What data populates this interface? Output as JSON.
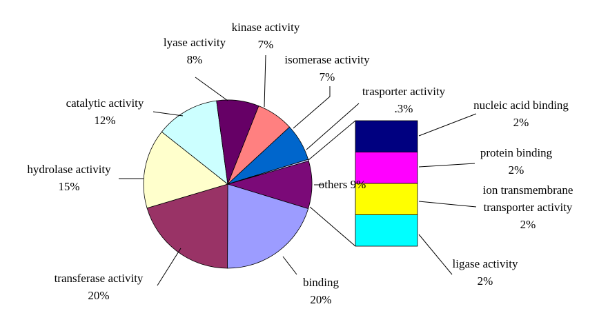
{
  "chart_data": {
    "type": "pie",
    "categories": [
      "others",
      "binding",
      "transferase activity",
      "hydrolase activity",
      "catalytic activity",
      "lyase activity",
      "kinase activity",
      "isomerase activity",
      "trasporter activity"
    ],
    "values": [
      9,
      20,
      20,
      15,
      12,
      8,
      7,
      7,
      0.3
    ],
    "value_labels": [
      "9%",
      "20%",
      "20%",
      "15%",
      "12%",
      "8%",
      "7%",
      "7%",
      ".3%"
    ],
    "colors": [
      "#7b0a78",
      "#9c9cff",
      "#993366",
      "#ffffcc",
      "#ccffff",
      "#660066",
      "#ff8080",
      "#0066cc",
      "#ccccff"
    ],
    "bar_of_pie": {
      "categories": [
        "nucleic acid binding",
        "protein binding",
        "ion transmembrane transporter activity",
        "ligase activity"
      ],
      "values": [
        2,
        2,
        2,
        2
      ],
      "value_labels": [
        "2%",
        "2%",
        "2%",
        "2%"
      ],
      "colors": [
        "#000080",
        "#ff00ff",
        "#ffff00",
        "#00ffff"
      ]
    }
  }
}
